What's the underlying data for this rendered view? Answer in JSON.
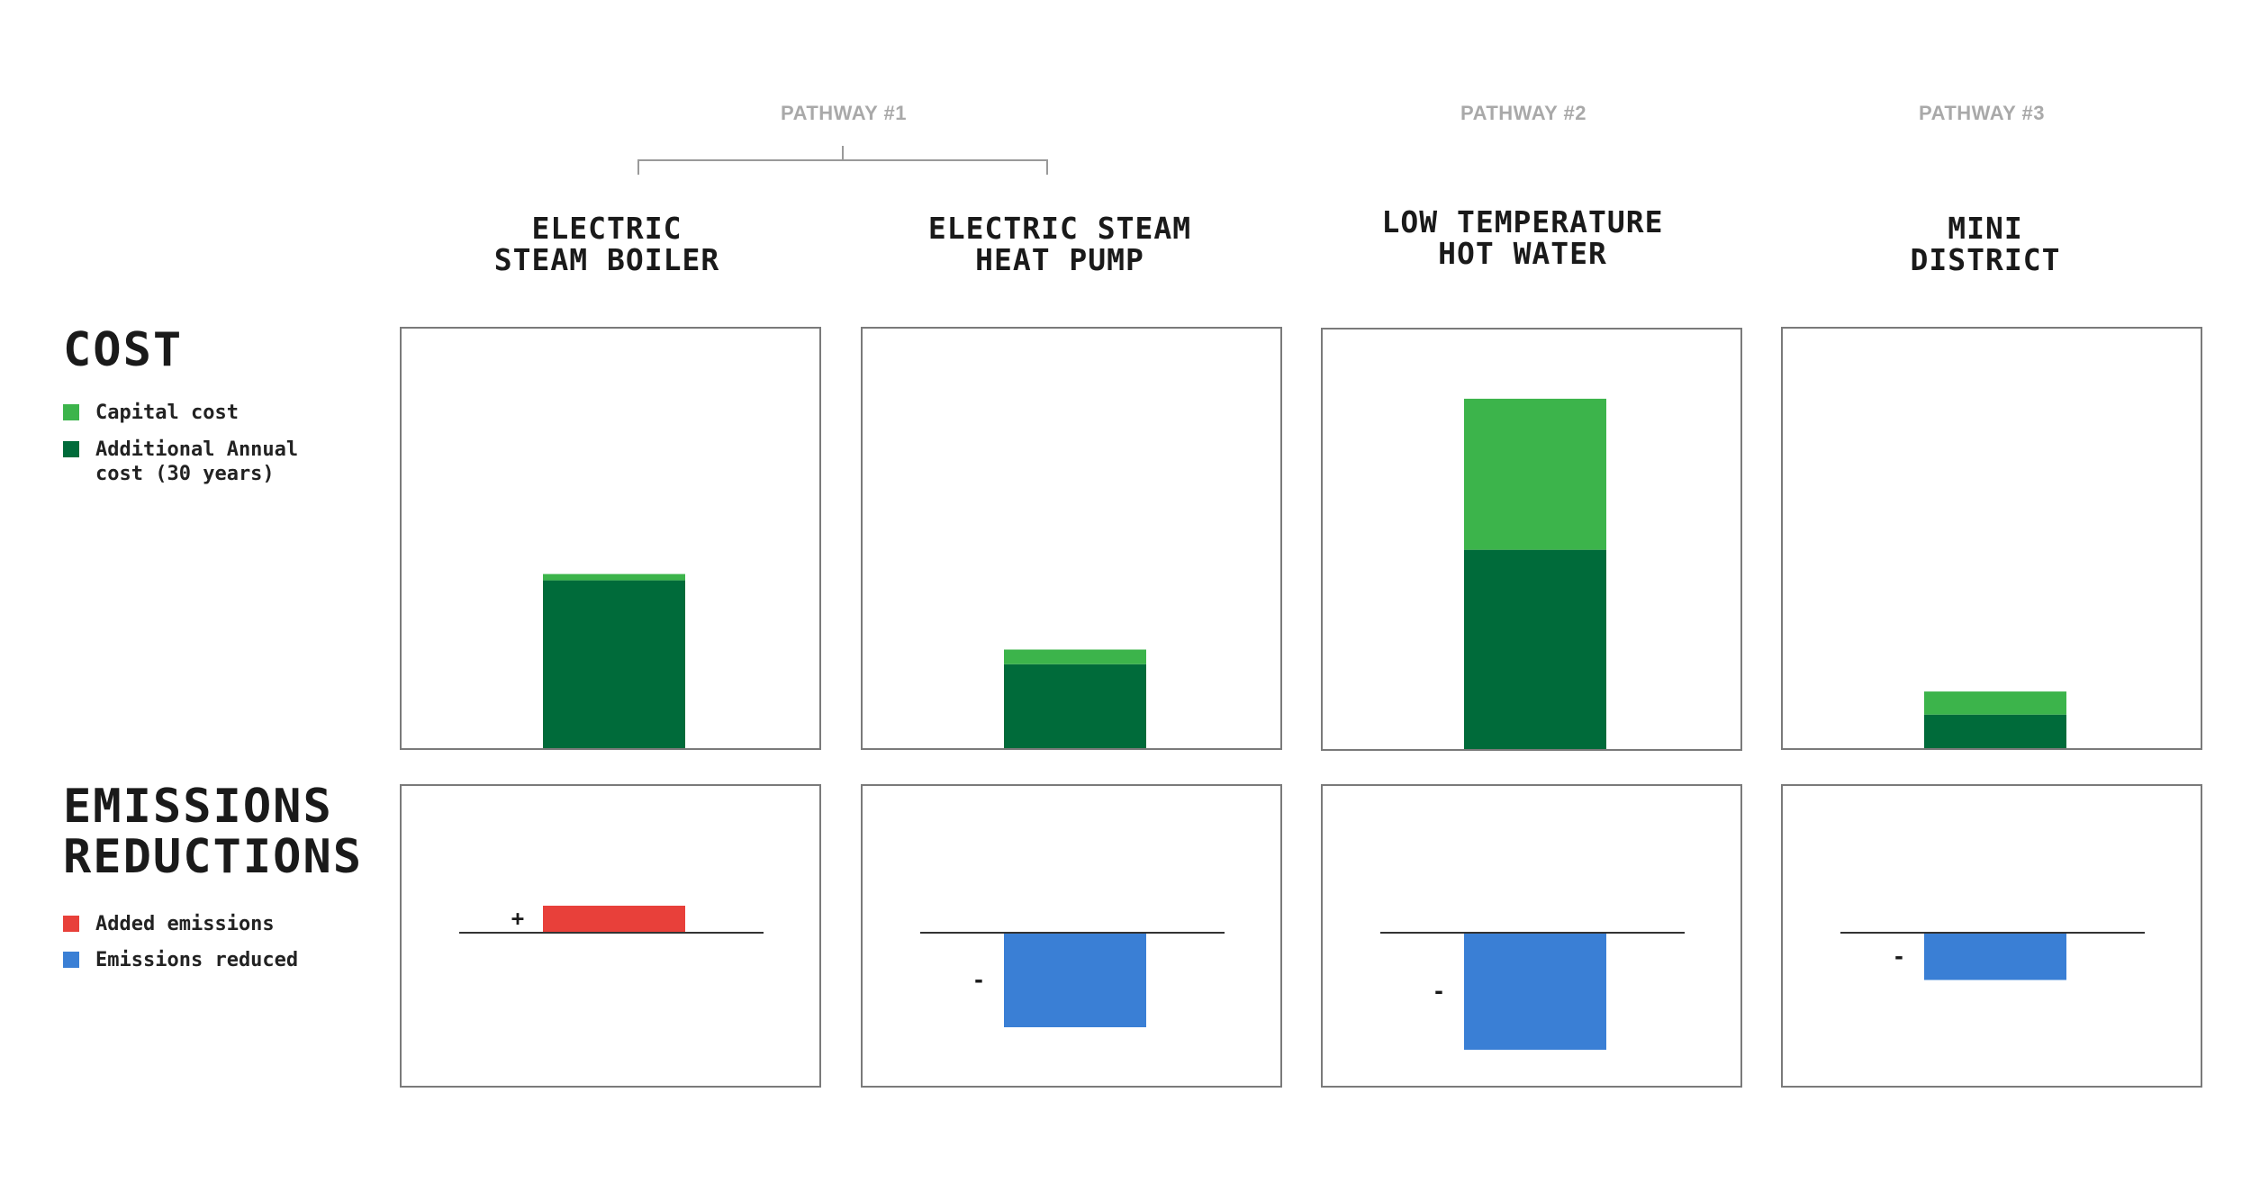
{
  "pathways": [
    "PATHWAY #1",
    "PATHWAY #2",
    "PATHWAY #3"
  ],
  "columns": [
    {
      "title_lines": [
        "ELECTRIC",
        "STEAM BOILER"
      ]
    },
    {
      "title_lines": [
        "ELECTRIC STEAM",
        "HEAT PUMP"
      ]
    },
    {
      "title_lines": [
        "LOW TEMPERATURE",
        "HOT WATER"
      ]
    },
    {
      "title_lines": [
        "MINI",
        "DISTRICT"
      ]
    }
  ],
  "cost_section": {
    "title": "COST",
    "legend": [
      {
        "label": "Capital cost",
        "color": "#3cb44b"
      },
      {
        "label": "Additional Annual cost (30 years)",
        "color": "#006b3a"
      }
    ]
  },
  "emissions_section": {
    "title_lines": [
      "EMISSIONS",
      "REDUCTIONS"
    ],
    "legend": [
      {
        "label": "Added emissions",
        "color": "#e8403a"
      },
      {
        "label": "Emissions reduced",
        "color": "#3a7fd5"
      }
    ]
  },
  "chart_data": [
    {
      "type": "bar",
      "title": "COST",
      "stacked": true,
      "categories": [
        "ELECTRIC STEAM BOILER",
        "ELECTRIC STEAM HEAT PUMP",
        "LOW TEMPERATURE HOT WATER",
        "MINI DISTRICT"
      ],
      "series": [
        {
          "name": "Additional Annual cost (30 years)",
          "color": "#006b3a",
          "values": [
            40,
            20,
            47.5,
            8
          ]
        },
        {
          "name": "Capital cost",
          "color": "#3cb44b",
          "values": [
            1.5,
            3.5,
            36,
            5.5
          ]
        }
      ],
      "ylim": [
        0,
        100
      ],
      "grid": false,
      "legend": "left"
    },
    {
      "type": "bar",
      "title": "EMISSIONS REDUCTIONS",
      "categories": [
        "ELECTRIC STEAM BOILER",
        "ELECTRIC STEAM HEAT PUMP",
        "LOW TEMPERATURE HOT WATER",
        "MINI DISTRICT"
      ],
      "values": [
        6,
        -21,
        -26,
        -10.5
      ],
      "sign_labels": [
        "+",
        "-",
        "-",
        "-"
      ],
      "series_colors": {
        "Added emissions": "#e8403a",
        "Emissions reduced": "#3a7fd5"
      },
      "ylim": [
        -33,
        33
      ],
      "grid": false,
      "legend": "left"
    }
  ]
}
